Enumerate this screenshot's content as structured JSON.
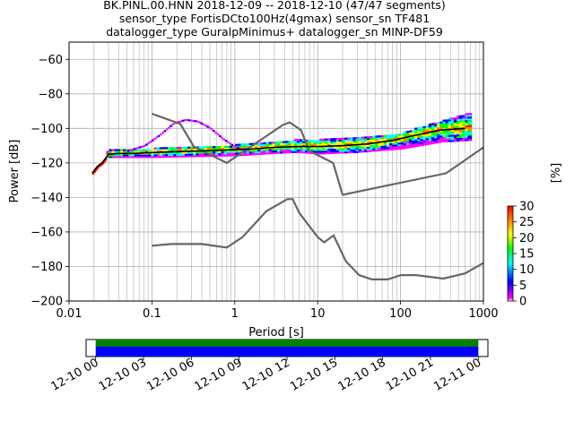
{
  "chart_data": [
    {
      "type": "heatmap",
      "title": [
        "BK.PINL.00.HNN   2018-12-09 -- 2018-12-10  (47/47 segments)",
        "sensor_type FortisDCto100Hz(4gmax) sensor_sn TF481",
        "datalogger_type GuralpMinimus+ datalogger_sn MINP-DF59"
      ],
      "xlabel": "Period [s]",
      "ylabel": "Power [dB]",
      "xscale": "log",
      "xlim": [
        0.01,
        1000
      ],
      "ylim": [
        -200,
        -50
      ],
      "grid": true,
      "x_ticks": [
        "0.01",
        "0.1",
        "1",
        "10",
        "100",
        "1000"
      ],
      "y_ticks": [
        "−200",
        "−180",
        "−160",
        "−140",
        "−120",
        "−100",
        "−80",
        "−60"
      ],
      "colorbar": {
        "label": "[%]",
        "range": [
          0,
          30
        ],
        "ticks": [
          "0",
          "5",
          "10",
          "15",
          "20",
          "25",
          "30"
        ]
      },
      "mean_curve": {
        "x": [
          0.019,
          0.022,
          0.025,
          0.03,
          0.04,
          0.06,
          0.1,
          0.2,
          0.4,
          0.8,
          1.5,
          3,
          6,
          10,
          20,
          40,
          80,
          150,
          300,
          600
        ],
        "y": [
          -126,
          -122,
          -120,
          -115,
          -114.5,
          -114.5,
          -114,
          -113.5,
          -113,
          -112.5,
          -112,
          -111,
          -110.5,
          -110.5,
          -110,
          -109,
          -107,
          -104,
          -101,
          -100
        ]
      },
      "density_upper_band": {
        "x": [
          0.05,
          0.08,
          0.12,
          0.18,
          0.25,
          0.35,
          0.5,
          0.7,
          1.0,
          1.5
        ],
        "y": [
          -113,
          -110,
          -104,
          -97,
          -95,
          -96,
          -100,
          -106,
          -111,
          -113
        ]
      },
      "density_cloud": [
        {
          "x": 0.03,
          "y_low": -117,
          "y_high": -113
        },
        {
          "x": 0.1,
          "y_low": -117,
          "y_high": -112
        },
        {
          "x": 1,
          "y_low": -116,
          "y_high": -110
        },
        {
          "x": 5,
          "y_low": -114,
          "y_high": -107
        },
        {
          "x": 10,
          "y_low": -115,
          "y_high": -107
        },
        {
          "x": 30,
          "y_low": -114,
          "y_high": -105
        },
        {
          "x": 100,
          "y_low": -112,
          "y_high": -103
        },
        {
          "x": 300,
          "y_low": -108,
          "y_high": -96
        },
        {
          "x": 700,
          "y_low": -107,
          "y_high": -91
        }
      ],
      "noise_models": [
        {
          "x": [
            0.1,
            0.17,
            0.4,
            0.8,
            1.24,
            2.4,
            4.3,
            5,
            6,
            10,
            12,
            15.6,
            21.9,
            31.6,
            45,
            70,
            101,
            154,
            328,
            600,
            1000
          ],
          "y": [
            -168,
            -167,
            -167,
            -169,
            -163,
            -148,
            -141,
            -141,
            -149,
            -163,
            -166,
            -162,
            -177,
            -185,
            -187.5,
            -187.5,
            -185,
            -185,
            -187,
            -184,
            -178
          ]
        },
        {
          "x": [
            0.1,
            0.22,
            0.32,
            0.8,
            3.8,
            4.6,
            6.3,
            7.9,
            15.4,
            20,
            354.8,
            1000
          ],
          "y": [
            -91.5,
            -97.4,
            -110.5,
            -120,
            -98,
            -96.5,
            -101,
            -113,
            -120,
            -138.5,
            -126,
            -111
          ]
        }
      ]
    },
    {
      "type": "bar",
      "title": "",
      "x_ticks": [
        "12-10 00",
        "12-10 03",
        "12-10 06",
        "12-10 09",
        "12-10 12",
        "12-10 15",
        "12-10 18",
        "12-10 21",
        "12-11 00"
      ],
      "range_hours": [
        -0.6,
        24.6
      ],
      "series": [
        {
          "color": "#008000",
          "start_hour": 0,
          "end_hour": 24
        },
        {
          "color": "#0000ff",
          "start_hour": 0,
          "end_hour": 24
        }
      ]
    }
  ]
}
